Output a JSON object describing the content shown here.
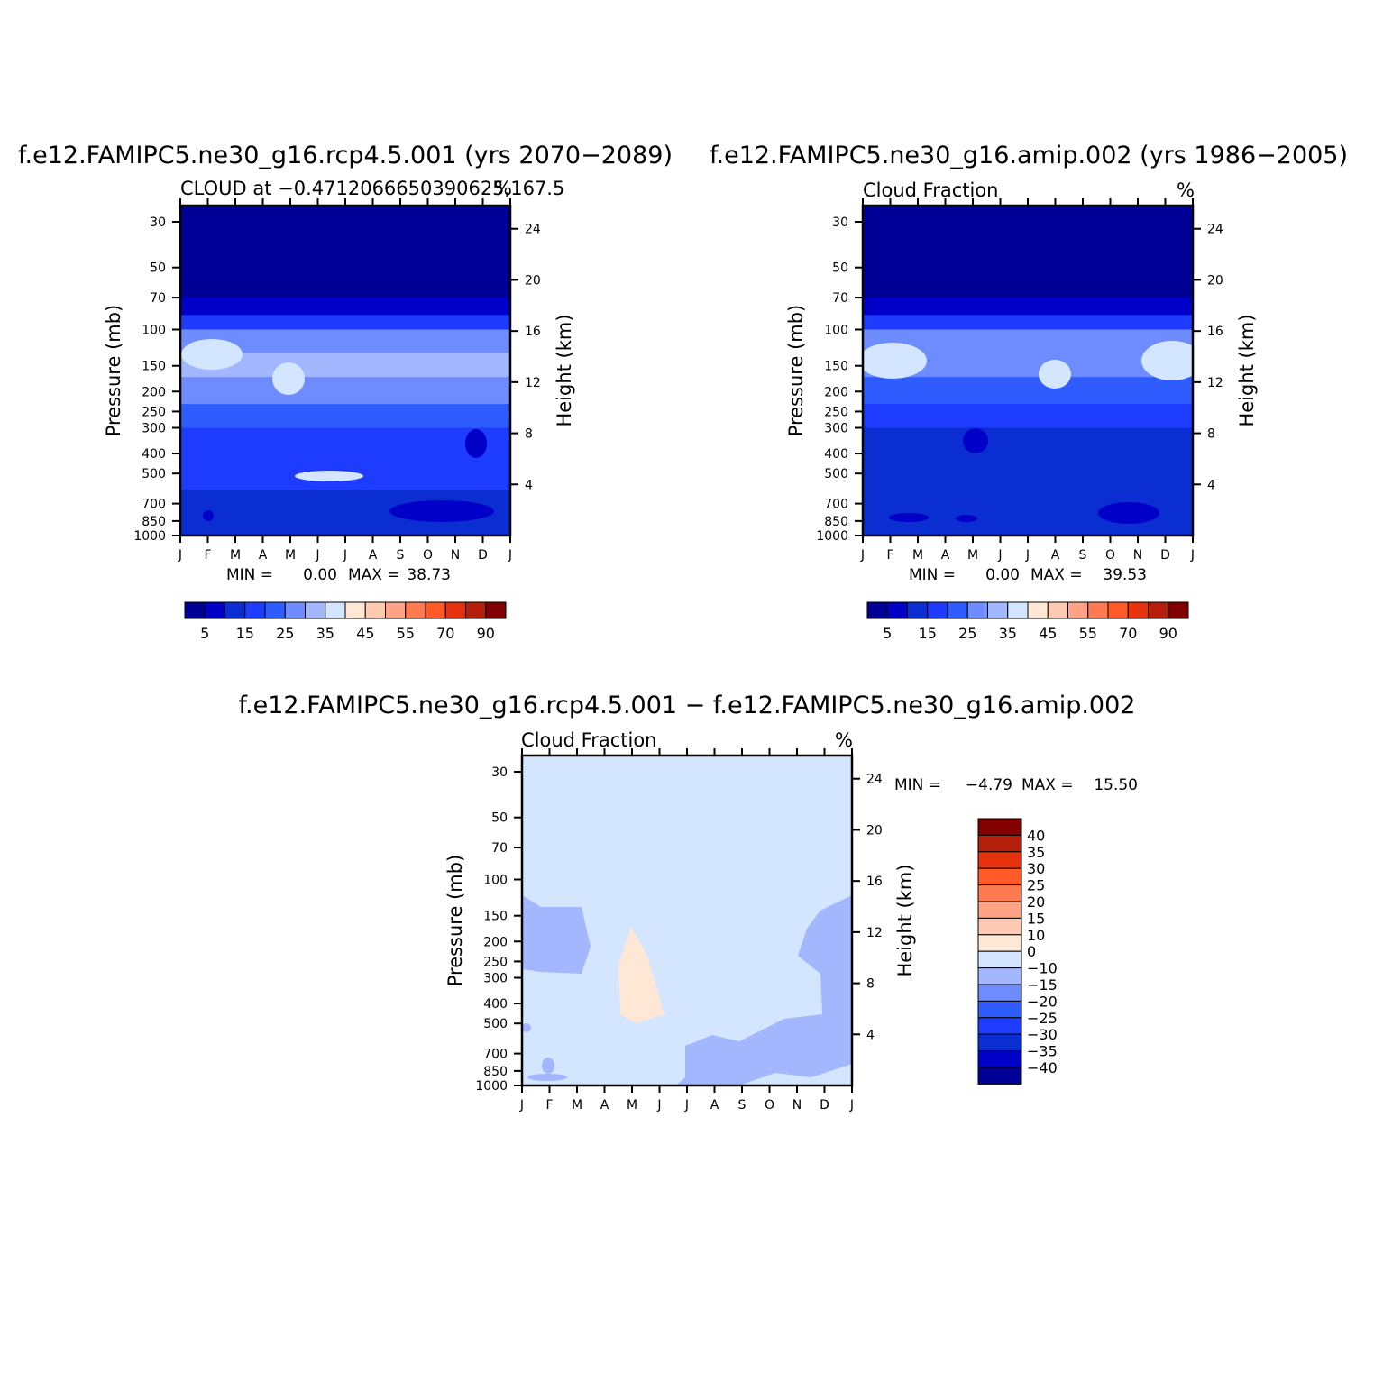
{
  "chart_data": [
    {
      "type": "heatmap",
      "panel": "case",
      "title": "f.e12.FAMIPC5.ne30_g16.rcp4.5.001 (yrs 2070−2089)",
      "subtitle_left": "CLOUD at −0.4712066650390625,167.5",
      "subtitle_right": "%",
      "ylabel": "Pressure (mb)",
      "ylabel_right": "Height (km)",
      "x_ticks": [
        "J",
        "F",
        "M",
        "A",
        "M",
        "J",
        "J",
        "A",
        "S",
        "O",
        "N",
        "D",
        "J"
      ],
      "y_ticks": [
        "30",
        "50",
        "70",
        "100",
        "150",
        "200",
        "250",
        "300",
        "400",
        "500",
        "700",
        "850",
        "1000"
      ],
      "y_ticks_right": [
        "24",
        "20",
        "16",
        "12",
        "8",
        "4"
      ],
      "min_text": "MIN =",
      "min_value": "0.00",
      "max_text": "MAX =",
      "max_value": "38.73",
      "colorbar_labels": [
        "5",
        "15",
        "25",
        "35",
        "45",
        "55",
        "70",
        "90"
      ],
      "levels": [
        0,
        5,
        10,
        15,
        20,
        25,
        30,
        35,
        40,
        45,
        50,
        55,
        60,
        70,
        80,
        90
      ],
      "profile": [
        {
          "pressure": 30,
          "value": 1
        },
        {
          "pressure": 70,
          "value": 3
        },
        {
          "pressure": 85,
          "value": 12
        },
        {
          "pressure": 100,
          "value": 22
        },
        {
          "pressure": 130,
          "value": 32
        },
        {
          "pressure": 170,
          "value": 30
        },
        {
          "pressure": 230,
          "value": 24
        },
        {
          "pressure": 300,
          "value": 17
        },
        {
          "pressure": 400,
          "value": 14
        },
        {
          "pressure": 500,
          "value": 18
        },
        {
          "pressure": 600,
          "value": 14
        },
        {
          "pressure": 800,
          "value": 11
        },
        {
          "pressure": 1000,
          "value": 13
        }
      ]
    },
    {
      "type": "heatmap",
      "panel": "control",
      "title": "f.e12.FAMIPC5.ne30_g16.amip.002 (yrs 1986−2005)",
      "subtitle_left": "Cloud Fraction",
      "subtitle_right": "%",
      "ylabel": "Pressure (mb)",
      "ylabel_right": "Height (km)",
      "x_ticks": [
        "J",
        "F",
        "M",
        "A",
        "M",
        "J",
        "J",
        "A",
        "S",
        "O",
        "N",
        "D",
        "J"
      ],
      "y_ticks": [
        "30",
        "50",
        "70",
        "100",
        "150",
        "200",
        "250",
        "300",
        "400",
        "500",
        "700",
        "850",
        "1000"
      ],
      "y_ticks_right": [
        "24",
        "20",
        "16",
        "12",
        "8",
        "4"
      ],
      "min_text": "MIN =",
      "min_value": "0.00",
      "max_text": "MAX =",
      "max_value": "39.53",
      "colorbar_labels": [
        "5",
        "15",
        "25",
        "35",
        "45",
        "55",
        "70",
        "90"
      ],
      "levels": [
        0,
        5,
        10,
        15,
        20,
        25,
        30,
        35,
        40,
        45,
        50,
        55,
        60,
        70,
        80,
        90
      ],
      "profile": [
        {
          "pressure": 30,
          "value": 1
        },
        {
          "pressure": 70,
          "value": 3
        },
        {
          "pressure": 85,
          "value": 12
        },
        {
          "pressure": 100,
          "value": 22
        },
        {
          "pressure": 130,
          "value": 31
        },
        {
          "pressure": 170,
          "value": 27
        },
        {
          "pressure": 230,
          "value": 20
        },
        {
          "pressure": 300,
          "value": 15
        },
        {
          "pressure": 400,
          "value": 12
        },
        {
          "pressure": 500,
          "value": 16
        },
        {
          "pressure": 600,
          "value": 13
        },
        {
          "pressure": 800,
          "value": 11
        },
        {
          "pressure": 1000,
          "value": 13
        }
      ]
    },
    {
      "type": "heatmap",
      "panel": "difference",
      "title": "f.e12.FAMIPC5.ne30_g16.rcp4.5.001 − f.e12.FAMIPC5.ne30_g16.amip.002",
      "subtitle_left": "Cloud Fraction",
      "subtitle_right": "%",
      "ylabel": "Pressure (mb)",
      "ylabel_right": "Height (km)",
      "x_ticks": [
        "J",
        "F",
        "M",
        "A",
        "M",
        "J",
        "J",
        "A",
        "S",
        "O",
        "N",
        "D",
        "J"
      ],
      "y_ticks": [
        "30",
        "50",
        "70",
        "100",
        "150",
        "200",
        "250",
        "300",
        "400",
        "500",
        "700",
        "850",
        "1000"
      ],
      "y_ticks_right": [
        "24",
        "20",
        "16",
        "12",
        "8",
        "4"
      ],
      "min_text": "MIN =",
      "min_value": "−4.79",
      "max_text": "MAX =",
      "max_value": "15.50",
      "colorbar_labels": [
        "40",
        "35",
        "30",
        "25",
        "20",
        "15",
        "10",
        "0",
        "−10",
        "−15",
        "−20",
        "−25",
        "−30",
        "−35",
        "−40"
      ],
      "levels": [
        -40,
        -35,
        -30,
        -25,
        -20,
        -15,
        -10,
        0,
        10,
        15,
        20,
        25,
        30,
        35,
        40
      ],
      "background_value": 5,
      "features": [
        {
          "label": "negative upper-left",
          "value": -5
        },
        {
          "label": "positive May",
          "value": 12
        },
        {
          "label": "negative upper-right",
          "value": -5
        },
        {
          "label": "negative low-level summer",
          "value": -5
        }
      ]
    }
  ],
  "colors": {
    "scale_seq": [
      "#000096",
      "#0000c8",
      "#0a2ed2",
      "#1e3cff",
      "#2e5cff",
      "#6f8cff",
      "#a2b7ff",
      "#d4e6ff",
      "#ffe7d6",
      "#ffc9b2",
      "#ffa285",
      "#ff7a50",
      "#ff5a28",
      "#e6330d",
      "#b41e0a",
      "#820000"
    ],
    "diff_seq_top_down": [
      "#820000",
      "#b41e0a",
      "#e6330d",
      "#ff5a28",
      "#ff7a50",
      "#ffa285",
      "#ffc9b2",
      "#ffe7d6",
      "#d4e6ff",
      "#a2b7ff",
      "#6f8cff",
      "#2e5cff",
      "#1e3cff",
      "#0a2ed2",
      "#0000c8",
      "#000096"
    ]
  }
}
